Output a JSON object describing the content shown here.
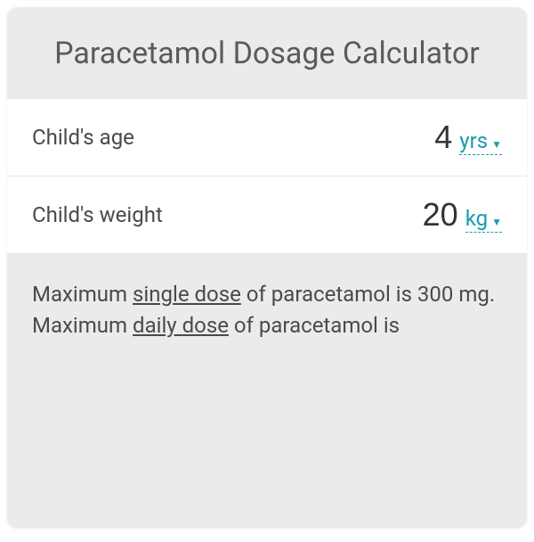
{
  "title": "Paracetamol Dosage Calculator",
  "inputs": {
    "age": {
      "label": "Child's age",
      "value": "4",
      "unit": "yrs"
    },
    "weight": {
      "label": "Child's weight",
      "value": "20",
      "unit": "kg"
    }
  },
  "results": {
    "line1_prefix": "Maximum ",
    "line1_underlined": "single dose",
    "line1_suffix": " of paracetamol is 300 mg.",
    "line2_prefix": "Maximum ",
    "line2_underlined": "daily dose",
    "line2_suffix": " of paracetamol is"
  },
  "colors": {
    "card_background": "#ebebeb",
    "row_background": "#ffffff",
    "title_color": "#5a5a5a",
    "label_color": "#4a4a4a",
    "value_color": "#333333",
    "accent_color": "#1a9cb0",
    "border_color": "#e8e8e8"
  }
}
